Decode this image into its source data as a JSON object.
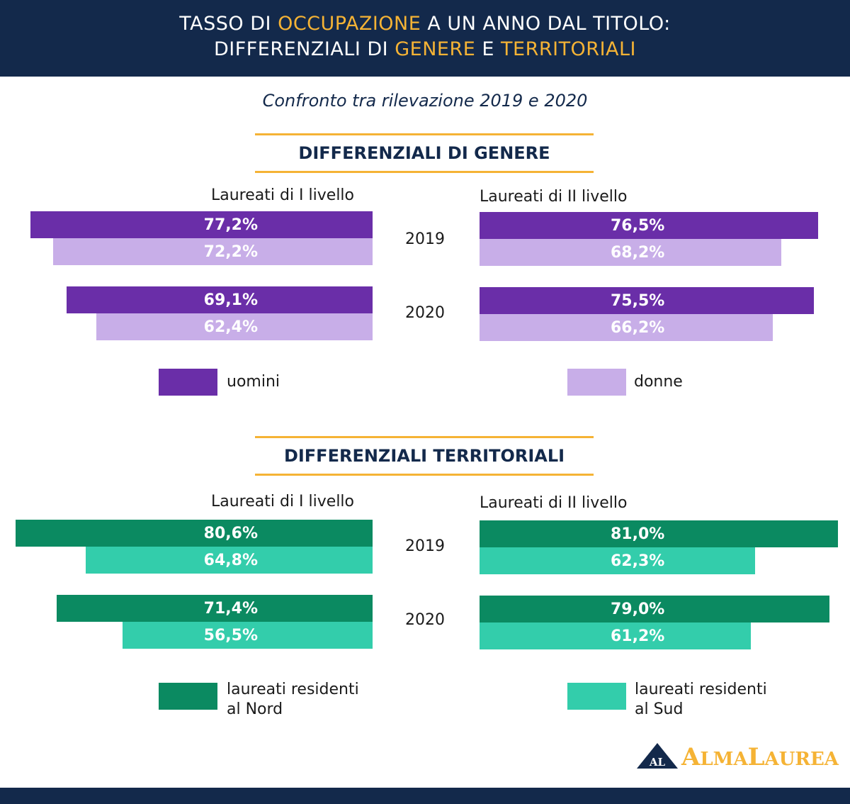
{
  "header": {
    "title_line1": {
      "pre": "TASSO DI ",
      "hl": "OCCUPAZIONE",
      "post": " A UN ANNO DAL TITOLO:"
    },
    "title_line2": {
      "pre": "DIFFERENZIALI DI ",
      "hl1": "GENERE",
      "mid": " E ",
      "hl2": "TERRITORIALI"
    },
    "subtitle": "Confronto tra rilevazione 2019 e 2020"
  },
  "colors": {
    "navy": "#13294b",
    "gold": "#f5b335",
    "uomini": "#6a2ea8",
    "donne": "#c8aee8",
    "nord": "#0b8a61",
    "sud": "#33cdab"
  },
  "sections": {
    "genere": {
      "heading": "DIFFERENZIALI DI GENERE",
      "level1": "Laureati di I livello",
      "level2": "Laureati di II livello",
      "legend": [
        "uomini",
        "donne"
      ]
    },
    "territoriali": {
      "heading": "DIFFERENZIALI TERRITORIALI",
      "level1": "Laureati di I livello",
      "level2": "Laureati di II livello",
      "legend": [
        "laureati residenti",
        "al Nord",
        "laureati residenti",
        "al Sud"
      ]
    }
  },
  "years": [
    "2019",
    "2020"
  ],
  "chart_data": [
    {
      "type": "bar",
      "section": "DIFFERENZIALI DI GENERE",
      "panel": "Laureati di I livello",
      "categories": [
        "2019",
        "2020"
      ],
      "series": [
        {
          "name": "uomini",
          "values": [
            77.2,
            69.1
          ],
          "labels": [
            "77,2%",
            "69,1%"
          ]
        },
        {
          "name": "donne",
          "values": [
            72.2,
            62.4
          ],
          "labels": [
            "72,2%",
            "62,4%"
          ]
        }
      ]
    },
    {
      "type": "bar",
      "section": "DIFFERENZIALI DI GENERE",
      "panel": "Laureati di II livello",
      "categories": [
        "2019",
        "2020"
      ],
      "series": [
        {
          "name": "uomini",
          "values": [
            76.5,
            75.5
          ],
          "labels": [
            "76,5%",
            "75,5%"
          ]
        },
        {
          "name": "donne",
          "values": [
            68.2,
            66.2
          ],
          "labels": [
            "68,2%",
            "66,2%"
          ]
        }
      ]
    },
    {
      "type": "bar",
      "section": "DIFFERENZIALI TERRITORIALI",
      "panel": "Laureati di I livello",
      "categories": [
        "2019",
        "2020"
      ],
      "series": [
        {
          "name": "laureati residenti al Nord",
          "values": [
            80.6,
            71.4
          ],
          "labels": [
            "80,6%",
            "71,4%"
          ]
        },
        {
          "name": "laureati residenti al Sud",
          "values": [
            64.8,
            56.5
          ],
          "labels": [
            "64,8%",
            "56,5%"
          ]
        }
      ]
    },
    {
      "type": "bar",
      "section": "DIFFERENZIALI TERRITORIALI",
      "panel": "Laureati di II livello",
      "categories": [
        "2019",
        "2020"
      ],
      "series": [
        {
          "name": "laureati residenti al Nord",
          "values": [
            81.0,
            79.0
          ],
          "labels": [
            "81,0%",
            "79,0%"
          ]
        },
        {
          "name": "laureati residenti al Sud",
          "values": [
            62.3,
            61.2
          ],
          "labels": [
            "62,3%",
            "61,2%"
          ]
        }
      ]
    }
  ],
  "logo": {
    "mark": "AL",
    "word1_big": "A",
    "word1_small": "LMA",
    "word2_big": "L",
    "word2_small": "AUREA"
  }
}
